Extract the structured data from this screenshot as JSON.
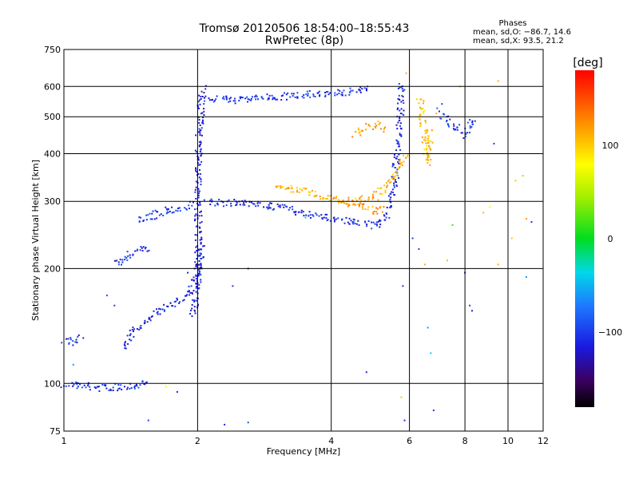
{
  "chart_data": {
    "type": "scatter",
    "title": "Tromsø 20120506 18:54:00–18:55:43",
    "subtitle": "RwPretec (8p)",
    "xlabel": "Frequency [MHz]",
    "ylabel": "Stationary phase Virtual Height [km]",
    "x_scale": "log",
    "y_scale": "log",
    "xlim": [
      1,
      12
    ],
    "ylim": [
      75,
      750
    ],
    "x_ticks": [
      1,
      2,
      4,
      6,
      8,
      10,
      12
    ],
    "y_ticks": [
      75,
      100,
      200,
      300,
      400,
      500,
      600,
      750
    ],
    "grid": true,
    "phases_box": {
      "heading": "Phases",
      "line_o": "mean, sd,O: −86.7, 14.6",
      "line_x": "mean, sd,X: 93.5, 21.2"
    },
    "colorbar": {
      "label": "[deg]",
      "range": [
        -180,
        180
      ],
      "ticks": [
        "100",
        "0",
        "−100"
      ],
      "tick_values": [
        100,
        0,
        -100
      ]
    },
    "traces": [
      {
        "points": [
          [
            1.0,
            100
          ],
          [
            1.1,
            99
          ],
          [
            1.2,
            98
          ],
          [
            1.3,
            98
          ],
          [
            1.4,
            99
          ],
          [
            1.5,
            100
          ],
          [
            1.55,
            102
          ]
        ],
        "phase": -105
      },
      {
        "points": [
          [
            1.0,
            130
          ],
          [
            1.04,
            129
          ],
          [
            1.08,
            131
          ],
          [
            1.1,
            133
          ]
        ],
        "phase": -105
      },
      {
        "points": [
          [
            1.3,
            205
          ],
          [
            1.4,
            220
          ],
          [
            1.5,
            225
          ],
          [
            1.55,
            225
          ]
        ],
        "phase": -110
      },
      {
        "points": [
          [
            1.45,
            268
          ],
          [
            1.55,
            275
          ],
          [
            1.7,
            285
          ],
          [
            1.85,
            290
          ],
          [
            1.95,
            295
          ]
        ],
        "phase": -100
      },
      {
        "points": [
          [
            1.35,
            125
          ],
          [
            1.45,
            140
          ],
          [
            1.55,
            150
          ],
          [
            1.7,
            160
          ],
          [
            1.85,
            168
          ],
          [
            1.95,
            180
          ],
          [
            2.0,
            200
          ],
          [
            2.05,
            230
          ]
        ],
        "phase": -110
      },
      {
        "points": [
          [
            1.95,
            150
          ],
          [
            2.0,
            200
          ],
          [
            2.0,
            300
          ],
          [
            2.0,
            400
          ],
          [
            2.02,
            500
          ],
          [
            2.05,
            600
          ]
        ],
        "phase": -115
      },
      {
        "points": [
          [
            2.1,
            300
          ],
          [
            2.5,
            298
          ],
          [
            3.0,
            292
          ],
          [
            3.5,
            280
          ],
          [
            4.0,
            272
          ],
          [
            4.5,
            265
          ],
          [
            5.0,
            260
          ],
          [
            5.3,
            275
          ],
          [
            5.5,
            320
          ],
          [
            5.6,
            400
          ],
          [
            5.7,
            520
          ],
          [
            5.75,
            620
          ]
        ],
        "phase": -110
      },
      {
        "points": [
          [
            2.1,
            560
          ],
          [
            2.5,
            555
          ],
          [
            3.0,
            565
          ],
          [
            3.5,
            575
          ],
          [
            4.0,
            580
          ],
          [
            4.5,
            585
          ],
          [
            4.9,
            600
          ]
        ],
        "phase": -105
      },
      {
        "points": [
          [
            3.0,
            330
          ],
          [
            3.5,
            320
          ],
          [
            4.0,
            305
          ],
          [
            4.5,
            300
          ],
          [
            5.0,
            310
          ],
          [
            5.3,
            330
          ],
          [
            5.6,
            360
          ],
          [
            5.9,
            400
          ]
        ],
        "phase": 110
      },
      {
        "points": [
          [
            4.3,
            300
          ],
          [
            4.7,
            292
          ],
          [
            5.0,
            285
          ],
          [
            5.3,
            290
          ]
        ],
        "phase": 120
      },
      {
        "points": [
          [
            4.5,
            450
          ],
          [
            4.8,
            470
          ],
          [
            5.1,
            480
          ],
          [
            5.3,
            460
          ]
        ],
        "phase": 115
      },
      {
        "points": [
          [
            6.3,
            560
          ],
          [
            6.4,
            500
          ],
          [
            6.5,
            420
          ],
          [
            6.6,
            380
          ],
          [
            6.65,
            460
          ]
        ],
        "phase": 105
      },
      {
        "points": [
          [
            7.0,
            520
          ],
          [
            7.3,
            480
          ],
          [
            7.6,
            470
          ],
          [
            8.0,
            450
          ],
          [
            8.3,
            500
          ]
        ],
        "phase": -100
      }
    ],
    "scatter_points": [
      {
        "x": 1.05,
        "y": 112,
        "phase": -60
      },
      {
        "x": 1.3,
        "y": 160,
        "phase": -100
      },
      {
        "x": 1.25,
        "y": 170,
        "phase": -90
      },
      {
        "x": 1.55,
        "y": 80,
        "phase": -100
      },
      {
        "x": 1.7,
        "y": 98,
        "phase": 80
      },
      {
        "x": 1.8,
        "y": 95,
        "phase": -110
      },
      {
        "x": 1.9,
        "y": 195,
        "phase": -110
      },
      {
        "x": 2.4,
        "y": 180,
        "phase": -100
      },
      {
        "x": 2.6,
        "y": 200,
        "phase": -110
      },
      {
        "x": 2.3,
        "y": 78,
        "phase": -110
      },
      {
        "x": 2.6,
        "y": 79,
        "phase": -90
      },
      {
        "x": 3.5,
        "y": 272,
        "phase": -20
      },
      {
        "x": 4.8,
        "y": 107,
        "phase": -110
      },
      {
        "x": 5.75,
        "y": 92,
        "phase": 100
      },
      {
        "x": 5.85,
        "y": 80,
        "phase": -110
      },
      {
        "x": 5.8,
        "y": 180,
        "phase": -105
      },
      {
        "x": 6.1,
        "y": 240,
        "phase": -100
      },
      {
        "x": 6.3,
        "y": 225,
        "phase": -95
      },
      {
        "x": 6.5,
        "y": 205,
        "phase": 110
      },
      {
        "x": 6.6,
        "y": 140,
        "phase": -60
      },
      {
        "x": 6.7,
        "y": 120,
        "phase": -40
      },
      {
        "x": 6.8,
        "y": 85,
        "phase": -100
      },
      {
        "x": 7.3,
        "y": 210,
        "phase": 105
      },
      {
        "x": 7.5,
        "y": 260,
        "phase": 20
      },
      {
        "x": 8.0,
        "y": 195,
        "phase": -110
      },
      {
        "x": 8.2,
        "y": 160,
        "phase": -100
      },
      {
        "x": 8.3,
        "y": 155,
        "phase": -110
      },
      {
        "x": 8.8,
        "y": 280,
        "phase": 110
      },
      {
        "x": 9.1,
        "y": 290,
        "phase": 80
      },
      {
        "x": 9.3,
        "y": 425,
        "phase": -100
      },
      {
        "x": 9.5,
        "y": 620,
        "phase": 110
      },
      {
        "x": 10.2,
        "y": 240,
        "phase": 100
      },
      {
        "x": 10.4,
        "y": 340,
        "phase": 100
      },
      {
        "x": 10.8,
        "y": 350,
        "phase": 40
      },
      {
        "x": 11.0,
        "y": 270,
        "phase": 120
      },
      {
        "x": 11.3,
        "y": 265,
        "phase": -100
      },
      {
        "x": 11.0,
        "y": 190,
        "phase": -60
      },
      {
        "x": 9.5,
        "y": 205,
        "phase": 110
      },
      {
        "x": 6.9,
        "y": 510,
        "phase": 110
      },
      {
        "x": 7.1,
        "y": 540,
        "phase": -100
      },
      {
        "x": 7.8,
        "y": 600,
        "phase": 110
      },
      {
        "x": 5.9,
        "y": 650,
        "phase": 110
      }
    ]
  }
}
